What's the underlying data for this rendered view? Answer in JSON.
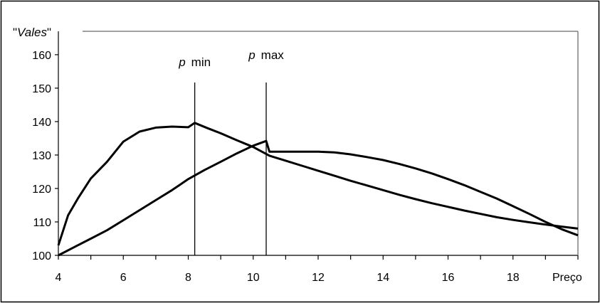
{
  "chart_data": {
    "type": "line",
    "ylabel": "Vales",
    "xlabel": "Preço",
    "xlim": [
      4,
      20
    ],
    "ylim": [
      100,
      167
    ],
    "x_ticks": [
      4,
      6,
      8,
      10,
      12,
      14,
      16,
      18
    ],
    "y_ticks": [
      100,
      110,
      120,
      130,
      140,
      150,
      160
    ],
    "grid": false,
    "legend": "none",
    "markers": [
      {
        "label_italic": "p",
        "label_rest": "min",
        "x": 8.2
      },
      {
        "label_italic": "p",
        "label_rest": "max",
        "x": 10.4
      }
    ],
    "series": [
      {
        "x": [
          4,
          4.3,
          4.6,
          5,
          5.5,
          6,
          6.5,
          7,
          7.5,
          8,
          8.2,
          8.6,
          9,
          9.5,
          10,
          10.5,
          11,
          11.5,
          12,
          12.5,
          13,
          13.5,
          14,
          14.5,
          15,
          15.5,
          16,
          16.5,
          17,
          17.5,
          18,
          18.5,
          19,
          19.5,
          20
        ],
        "y": [
          103,
          112,
          117,
          123,
          128,
          134,
          137,
          138.2,
          138.5,
          138.3,
          139.6,
          138,
          136.5,
          134.4,
          132.4,
          129.8,
          128.3,
          126.8,
          125.3,
          123.8,
          122.3,
          120.9,
          119.5,
          118.1,
          116.8,
          115.6,
          114.5,
          113.4,
          112.4,
          111.4,
          110.6,
          109.9,
          109.2,
          108.6,
          108
        ]
      },
      {
        "x": [
          4,
          4.5,
          5,
          5.5,
          6,
          6.5,
          7,
          7.5,
          8,
          8.5,
          9,
          9.5,
          10,
          10.4,
          10.5,
          11,
          11.5,
          12,
          12.5,
          13,
          13.5,
          14,
          14.5,
          15,
          15.5,
          16,
          16.5,
          17,
          17.5,
          18,
          18.5,
          19,
          19.5,
          20
        ],
        "y": [
          100,
          102.5,
          105,
          107.5,
          110.5,
          113.5,
          116.5,
          119.5,
          122.8,
          125.5,
          128,
          130.5,
          132.8,
          134.2,
          131,
          131,
          131,
          131,
          130.8,
          130.2,
          129.4,
          128.5,
          127.3,
          126,
          124.5,
          122.8,
          121,
          119,
          117,
          114.7,
          112.4,
          110,
          107.8,
          106
        ]
      }
    ]
  }
}
